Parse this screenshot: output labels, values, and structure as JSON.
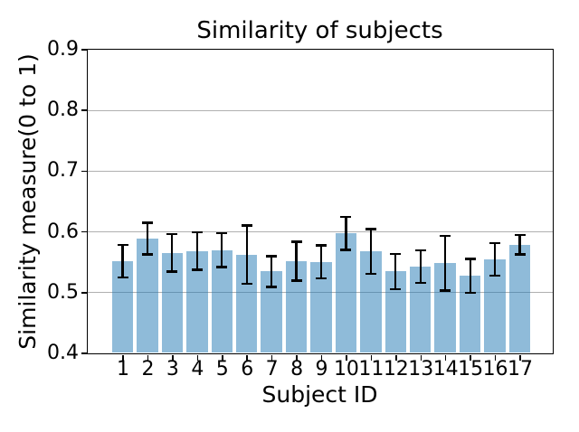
{
  "chart_data": {
    "type": "bar",
    "title": "Similarity of subjects",
    "xlabel": "Subject ID",
    "ylabel": "Similarity measure(0 to 1)",
    "categories": [
      "1",
      "2",
      "3",
      "4",
      "5",
      "6",
      "7",
      "8",
      "9",
      "10",
      "11",
      "12",
      "13",
      "14",
      "15",
      "16",
      "17"
    ],
    "values": [
      0.551,
      0.588,
      0.565,
      0.568,
      0.569,
      0.562,
      0.534,
      0.551,
      0.55,
      0.597,
      0.567,
      0.534,
      0.542,
      0.548,
      0.527,
      0.554,
      0.578
    ],
    "errors": [
      0.027,
      0.026,
      0.031,
      0.031,
      0.028,
      0.048,
      0.025,
      0.032,
      0.027,
      0.027,
      0.037,
      0.029,
      0.027,
      0.045,
      0.028,
      0.027,
      0.016
    ],
    "ylim": [
      0.4,
      0.9
    ],
    "yticks": [
      0.4,
      0.5,
      0.6,
      0.7,
      0.8,
      0.9
    ],
    "grid": true,
    "legend": null,
    "bar_color": "#1f77b4",
    "bar_alpha": 0.5,
    "error_color": "#000000",
    "grid_color": "#b0b0b0",
    "spine_color": "#000000"
  }
}
